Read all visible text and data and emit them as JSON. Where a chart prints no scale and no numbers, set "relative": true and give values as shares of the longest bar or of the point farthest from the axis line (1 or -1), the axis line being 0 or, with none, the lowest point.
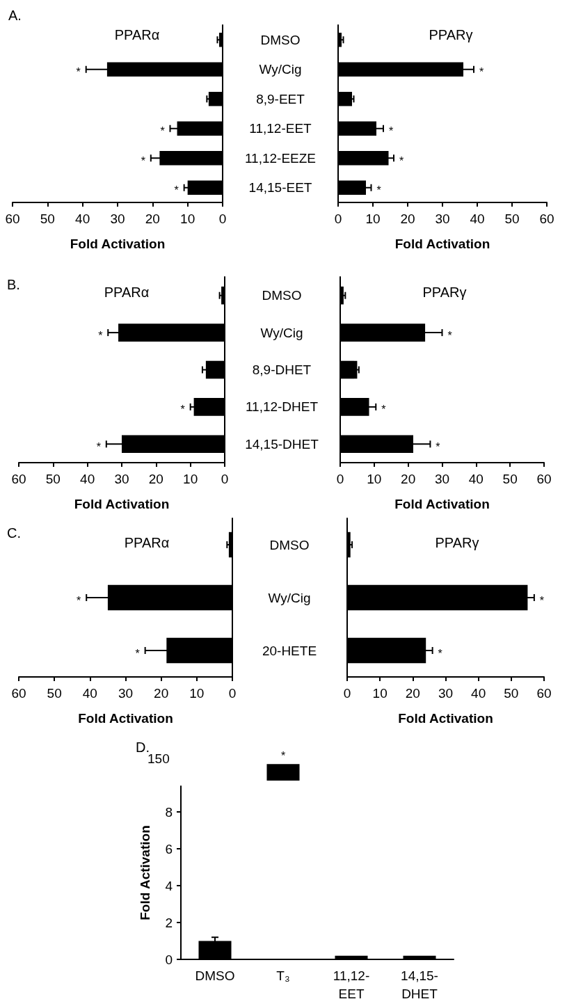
{
  "chart_data": [
    {
      "type": "bar",
      "orientation": "horizontal",
      "title": "PPARα",
      "xlabel": "Fold Activation",
      "color": "#000000",
      "categories": [
        "DMSO",
        "Wy/Cig",
        "8,9-EET",
        "11,12-EET",
        "11,12-EEZE",
        "14,15-EET"
      ],
      "values": [
        1,
        33,
        4,
        13,
        18,
        10
      ],
      "errors": [
        0.5,
        6,
        0.5,
        2,
        2.5,
        1
      ],
      "xlim": [
        60,
        0
      ],
      "xticks": [
        60,
        50,
        40,
        30,
        20,
        10,
        0
      ],
      "annotations": [
        "A.",
        {
          "text": "*",
          "x": 33,
          "y": "Wy/Cig"
        },
        {
          "text": "*",
          "x": 13,
          "y": "11,12-EET"
        },
        {
          "text": "*",
          "x": 18,
          "y": "11,12-EEZE"
        },
        {
          "text": "*",
          "x": 10,
          "y": "14,15-EET"
        }
      ]
    },
    {
      "type": "bar",
      "orientation": "horizontal",
      "title": "PPARγ",
      "xlabel": "Fold Activation",
      "color": "#000000",
      "categories": [
        "DMSO",
        "Wy/Cig",
        "8,9-EET",
        "11,12-EET",
        "11,12-EEZE",
        "14,15-EET"
      ],
      "values": [
        1,
        36,
        4,
        11,
        14.5,
        8
      ],
      "errors": [
        0.5,
        3,
        0.5,
        2,
        1.5,
        1.5
      ],
      "xlim": [
        0,
        60
      ],
      "xticks": [
        0,
        10,
        20,
        30,
        40,
        50,
        60
      ],
      "tick_labels": "x",
      "annotations": [
        {
          "text": "*",
          "x": 36,
          "y": "Wy/Cig"
        },
        {
          "text": "*",
          "x": 11,
          "y": "11,12-EET"
        },
        {
          "text": "*",
          "x": 14.5,
          "y": "11,12-EEZE"
        },
        {
          "text": "*",
          "x": 8,
          "y": "14,15-EET"
        }
      ]
    },
    {
      "type": "bar",
      "orientation": "horizontal",
      "title": "PPARα",
      "xlabel": "Fold Activation",
      "color": "#000000",
      "categories": [
        "DMSO",
        "Wy/Cig",
        "8,9-DHET",
        "11,12-DHET",
        "14,15-DHET"
      ],
      "values": [
        1,
        31,
        5.5,
        9,
        30
      ],
      "errors": [
        0.5,
        3,
        1,
        1,
        4.5
      ],
      "xlim": [
        60,
        0
      ],
      "xticks": [
        60,
        50,
        40,
        30,
        20,
        10,
        0
      ],
      "annotations": [
        "B.",
        {
          "text": "*",
          "x": 31,
          "y": "Wy/Cig"
        },
        {
          "text": "*",
          "x": 9,
          "y": "11,12-DHET"
        },
        {
          "text": "*",
          "x": 30,
          "y": "14,15-DHET"
        }
      ]
    },
    {
      "type": "bar",
      "orientation": "horizontal",
      "title": "PPARγ",
      "xlabel": "Fold Activation",
      "color": "#000000",
      "categories": [
        "DMSO",
        "Wy/Cig",
        "8,9-DHET",
        "11,12-DHET",
        "14,15-DHET"
      ],
      "values": [
        1,
        25,
        5,
        8.5,
        21.5
      ],
      "errors": [
        0.5,
        5,
        0.5,
        2,
        5
      ],
      "xlim": [
        0,
        60
      ],
      "xticks": [
        0,
        10,
        20,
        30,
        40,
        50,
        60
      ],
      "tick_labels": "x",
      "annotations": [
        {
          "text": "*",
          "x": 25,
          "y": "Wy/Cig"
        },
        {
          "text": "*",
          "x": 8.5,
          "y": "11,12-DHET"
        },
        {
          "text": "*",
          "x": 21.5,
          "y": "14,15-DHET"
        }
      ]
    },
    {
      "type": "bar",
      "orientation": "horizontal",
      "title": "PPARα",
      "xlabel": "Fold Activation",
      "color": "#000000",
      "categories": [
        "DMSO",
        "Wy/Cig",
        "20-HETE"
      ],
      "values": [
        1,
        35,
        18.5
      ],
      "errors": [
        0.5,
        6,
        6
      ],
      "xlim": [
        60,
        0
      ],
      "xticks": [
        60,
        50,
        40,
        30,
        20,
        10,
        0
      ],
      "annotations": [
        "C.",
        {
          "text": "*",
          "x": 35,
          "y": "Wy/Cig"
        },
        {
          "text": "*",
          "x": 18.5,
          "y": "20-HETE"
        }
      ]
    },
    {
      "type": "bar",
      "orientation": "horizontal",
      "title": "PPARγ",
      "xlabel": "Fold Activation",
      "color": "#000000",
      "categories": [
        "DMSO",
        "Wy/Cig",
        "20-HETE"
      ],
      "values": [
        1,
        55,
        24
      ],
      "errors": [
        0.5,
        2,
        2
      ],
      "xlim": [
        0,
        60
      ],
      "xticks": [
        0,
        10,
        20,
        30,
        40,
        50,
        60
      ],
      "tick_labels": "x",
      "annotations": [
        {
          "text": "*",
          "x": 55,
          "y": "Wy/Cig"
        },
        {
          "text": "*",
          "x": 24,
          "y": "20-HETE"
        }
      ]
    },
    {
      "type": "bar",
      "color": "#000000",
      "categories": [
        "DMSO",
        "T₃",
        "11,12-EET",
        "14,15-DHET"
      ],
      "values": [
        null,
        1,
        null,
        null
      ],
      "relative": true,
      "tick_labels": false,
      "annotations": [
        "D.",
        "150",
        {
          "text": "*",
          "x": "T₃",
          "y": 1
        }
      ]
    },
    {
      "type": "bar",
      "ylabel": "Fold Activation",
      "color": "#000000",
      "categories": [
        "DMSO",
        "T₃",
        "11,12-EET",
        "14,15-DHET"
      ],
      "values": [
        1,
        null,
        0.2,
        0.2
      ],
      "errors": [
        0.2,
        null,
        null,
        null
      ],
      "ylim": [
        0,
        9.4
      ],
      "yticks": [
        0,
        2,
        4,
        6,
        8
      ]
    }
  ]
}
